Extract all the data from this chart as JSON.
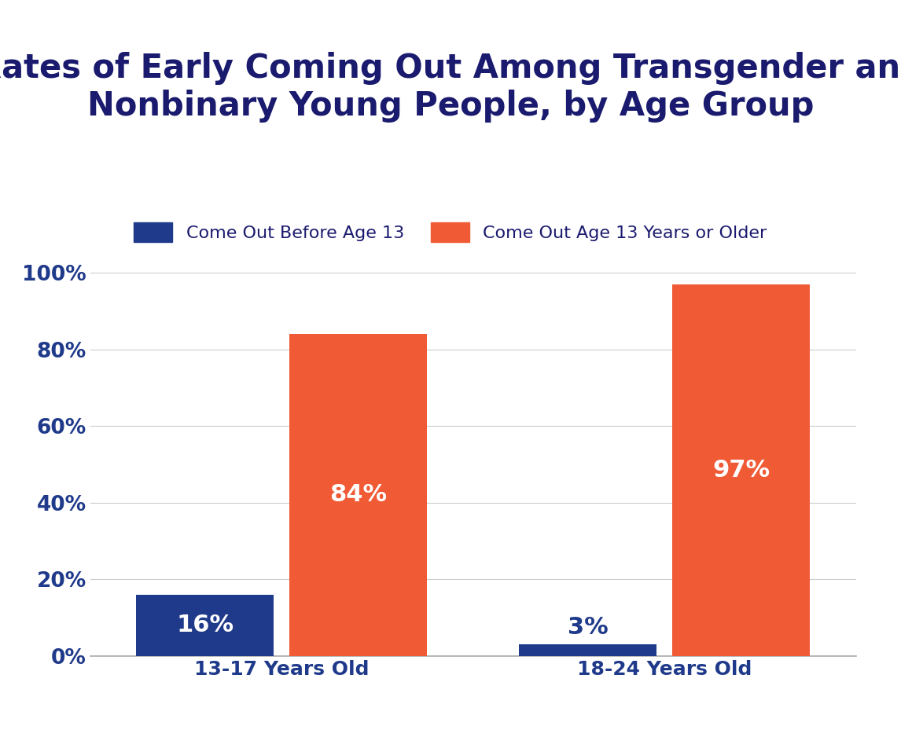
{
  "title": "Rates of Early Coming Out Among Transgender and\nNonbinary Young People, by Age Group",
  "title_color": "#1a1a6e",
  "background_color": "#ffffff",
  "categories": [
    "13-17 Years Old",
    "18-24 Years Old"
  ],
  "series": [
    {
      "label": "Come Out Before Age 13",
      "values": [
        16,
        3
      ],
      "color": "#1f3a8a"
    },
    {
      "label": "Come Out Age 13 Years or Older",
      "values": [
        84,
        97
      ],
      "color": "#f05a35"
    }
  ],
  "ylim": [
    0,
    100
  ],
  "yticks": [
    0,
    20,
    40,
    60,
    80,
    100
  ],
  "ytick_labels": [
    "0%",
    "20%",
    "40%",
    "60%",
    "80%",
    "100%"
  ],
  "bar_width": 0.18,
  "label_color_inside": "#ffffff",
  "label_color_outside": "#1f3a8a",
  "label_fontsize": 22,
  "axis_label_color": "#1f3a8a",
  "axis_tick_fontsize": 19,
  "category_fontsize": 18,
  "legend_fontsize": 16,
  "title_fontsize": 30,
  "grid_color": "#cccccc",
  "spine_color": "#aaaaaa"
}
